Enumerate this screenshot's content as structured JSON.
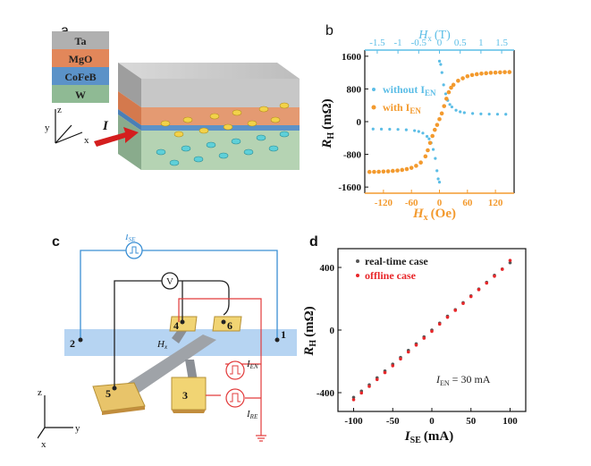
{
  "panels": {
    "a": {
      "label": "a",
      "layers": [
        "Ta",
        "MgO",
        "CoFeB",
        "W"
      ],
      "current_label": "I",
      "axes": {
        "x": "x",
        "y": "y",
        "z": "z"
      }
    },
    "b": {
      "label": "b"
    },
    "c": {
      "label": "c",
      "source_label": "I",
      "source_sub": "SE",
      "voltmeter": "V",
      "terminals": [
        "1",
        "2",
        "3",
        "4",
        "5",
        "6"
      ],
      "field_label": "H",
      "field_sub": "x",
      "pulse_en": "I",
      "pulse_en_sub": "EN",
      "pulse_re": "I",
      "pulse_re_sub": "RE",
      "axes": {
        "x": "x",
        "y": "y",
        "z": "z"
      }
    },
    "d": {
      "label": "d"
    }
  },
  "chart_data": [
    {
      "id": "b",
      "type": "scatter",
      "xlabel": "H",
      "xlabel_sub": "x",
      "xlabel_unit": "(Oe)",
      "x2label": "H",
      "x2label_sub": "x",
      "x2label_unit": "(T)",
      "ylabel": "R",
      "ylabel_sub": "H",
      "ylabel_unit": "(mΩ)",
      "xlim": [
        -160,
        160
      ],
      "ylim": [
        -1750,
        1750
      ],
      "x_ticks": [
        "-120",
        "-60",
        "0",
        "60",
        "120"
      ],
      "x_tick_values": [
        -120,
        -60,
        0,
        60,
        120
      ],
      "x2_ticks": [
        "-1.5",
        "-1",
        "-0.5",
        "0",
        "0.5",
        "1",
        "1.5"
      ],
      "x2_tick_values": [
        -1.5,
        -1,
        -0.5,
        0,
        0.5,
        1,
        1.5
      ],
      "x2lim": [
        -1.8,
        1.8
      ],
      "y_ticks": [
        "1600",
        "800",
        "0",
        "-800",
        "-1600"
      ],
      "y_tick_values": [
        1600,
        800,
        0,
        -800,
        -1600
      ],
      "colors": {
        "blue": "#5bbde6",
        "orange": "#f39a2e"
      },
      "series": [
        {
          "name": "without I",
          "name_sub": "EN",
          "color": "#5bbde6",
          "x_axis": "top",
          "up_x": [
            -1.6,
            -1.4,
            -1.2,
            -1.0,
            -0.8,
            -0.6,
            -0.5,
            -0.4,
            -0.3,
            -0.25,
            -0.2,
            -0.15,
            -0.1,
            -0.06,
            -0.03,
            0.0
          ],
          "up_y": [
            -180,
            -182,
            -185,
            -190,
            -200,
            -220,
            -240,
            -280,
            -360,
            -420,
            -520,
            -680,
            -900,
            -1200,
            -1400,
            -1480
          ],
          "down_x": [
            0.0,
            0.03,
            0.06,
            0.1,
            0.15,
            0.2,
            0.25,
            0.3,
            0.4,
            0.5,
            0.6,
            0.8,
            1.0,
            1.2,
            1.4,
            1.6
          ],
          "down_y": [
            1480,
            1400,
            1200,
            900,
            680,
            520,
            420,
            360,
            280,
            240,
            220,
            200,
            190,
            185,
            182,
            180
          ]
        },
        {
          "name": "with I",
          "name_sub": "EN",
          "color": "#f39a2e",
          "x_axis": "bottom",
          "x": [
            -150,
            -140,
            -130,
            -120,
            -110,
            -100,
            -90,
            -80,
            -70,
            -60,
            -50,
            -40,
            -30,
            -25,
            -20,
            -15,
            -10,
            -5,
            0,
            5,
            10,
            15,
            20,
            25,
            30,
            40,
            50,
            60,
            70,
            80,
            90,
            100,
            110,
            120,
            130,
            140,
            150
          ],
          "y": [
            -1230,
            -1228,
            -1225,
            -1220,
            -1215,
            -1205,
            -1195,
            -1180,
            -1160,
            -1130,
            -1080,
            -1000,
            -850,
            -700,
            -520,
            -350,
            -200,
            -80,
            60,
            200,
            380,
            560,
            720,
            830,
            900,
            1000,
            1060,
            1110,
            1140,
            1160,
            1175,
            1185,
            1195,
            1200,
            1205,
            1210,
            1212
          ]
        }
      ]
    },
    {
      "id": "d",
      "type": "scatter",
      "xlabel": "I",
      "xlabel_sub": "SE",
      "xlabel_unit": "(mA)",
      "ylabel": "R",
      "ylabel_sub": "H",
      "ylabel_unit": "(mΩ)",
      "xlim": [
        -120,
        120
      ],
      "ylim": [
        -520,
        520
      ],
      "x_ticks": [
        "-100",
        "-50",
        "0",
        "50",
        "100"
      ],
      "x_tick_values": [
        -100,
        -50,
        0,
        50,
        100
      ],
      "y_ticks": [
        "400",
        "0",
        "-400"
      ],
      "y_tick_values": [
        400,
        0,
        -400
      ],
      "annotation": "I",
      "annotation_sub": "EN",
      "annotation_rest": " = 30 mA",
      "series": [
        {
          "name": "real-time case",
          "color": "#555555",
          "x": [
            -100,
            -90,
            -80,
            -70,
            -60,
            -50,
            -40,
            -30,
            -20,
            -10,
            0,
            10,
            20,
            30,
            40,
            50,
            60,
            70,
            80,
            90,
            100
          ],
          "y": [
            -430,
            -390,
            -350,
            -305,
            -262,
            -218,
            -175,
            -130,
            -88,
            -44,
            0,
            44,
            88,
            130,
            175,
            218,
            262,
            305,
            350,
            390,
            430
          ]
        },
        {
          "name": "offline case",
          "color": "#e8272a",
          "x": [
            -100,
            -90,
            -80,
            -70,
            -60,
            -50,
            -40,
            -30,
            -20,
            -10,
            0,
            10,
            20,
            30,
            40,
            50,
            60,
            70,
            80,
            90,
            100
          ],
          "y": [
            -445,
            -402,
            -360,
            -316,
            -272,
            -228,
            -184,
            -140,
            -96,
            -52,
            -8,
            38,
            82,
            126,
            170,
            214,
            258,
            300,
            344,
            388,
            445
          ]
        }
      ]
    }
  ]
}
